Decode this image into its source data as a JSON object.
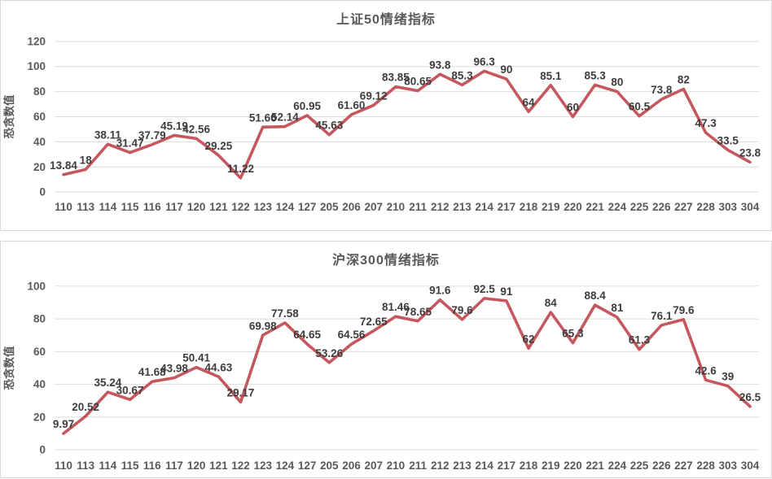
{
  "page": {
    "background_color": "#ffffff"
  },
  "chart_data": [
    {
      "type": "line",
      "title": "上证50情绪指标",
      "xlabel": "",
      "ylabel": "恐贪数值",
      "legend": "none",
      "grid": true,
      "ylim": [
        0,
        120
      ],
      "yticks": [
        0,
        20,
        40,
        60,
        80,
        100,
        120
      ],
      "categories": [
        "110",
        "113",
        "114",
        "115",
        "116",
        "117",
        "120",
        "121",
        "122",
        "123",
        "124",
        "127",
        "205",
        "206",
        "207",
        "210",
        "211",
        "212",
        "213",
        "214",
        "217",
        "218",
        "219",
        "220",
        "221",
        "224",
        "225",
        "226",
        "227",
        "228",
        "303",
        "304"
      ],
      "values": [
        13.84,
        18,
        38.11,
        31.47,
        37.79,
        45.19,
        42.56,
        29.25,
        11.22,
        51.66,
        52.14,
        60.95,
        45.63,
        61.6,
        69.12,
        83.85,
        80.65,
        93.8,
        85.3,
        96.3,
        90,
        64,
        85.1,
        60,
        85.3,
        80,
        60.5,
        73.8,
        82,
        47.3,
        33.5,
        23.8
      ],
      "point_labels": [
        "13.84",
        "18",
        "38.11",
        "31.47",
        "37.79",
        "45.19",
        "42.56",
        "29.25",
        "11.22",
        "51.66",
        "52.14",
        "60.95",
        "45.63",
        "61.60",
        "69.12",
        "83.85",
        "80.65",
        "93.8",
        "85.3",
        "96.3",
        "90",
        "64",
        "85.1",
        "60",
        "85.3",
        "80",
        "60.5",
        "73.8",
        "82",
        "47.3",
        "33.5",
        "23.8"
      ],
      "line_color": "#c4585e",
      "label_color": "#3d3d3d",
      "axis_text_color": "#595959",
      "grid_color": "#dcdcdc"
    },
    {
      "type": "line",
      "title": "沪深300情绪指标",
      "xlabel": "",
      "ylabel": "恐贪数值",
      "legend": "none",
      "grid": true,
      "ylim": [
        0,
        100
      ],
      "yticks": [
        0,
        20,
        40,
        60,
        80,
        100
      ],
      "categories": [
        "110",
        "113",
        "114",
        "115",
        "116",
        "117",
        "120",
        "121",
        "122",
        "123",
        "124",
        "127",
        "205",
        "206",
        "207",
        "210",
        "211",
        "212",
        "213",
        "214",
        "217",
        "218",
        "219",
        "220",
        "221",
        "224",
        "225",
        "226",
        "227",
        "228",
        "303",
        "304"
      ],
      "values": [
        9.97,
        20.52,
        35.24,
        30.67,
        41.68,
        43.98,
        50.41,
        44.63,
        29.17,
        69.98,
        77.58,
        64.65,
        53.26,
        64.56,
        72.65,
        81.46,
        78.65,
        91.6,
        79.6,
        92.5,
        91,
        62,
        84,
        65.3,
        88.4,
        81,
        61.3,
        76.1,
        79.6,
        42.6,
        39,
        26.5
      ],
      "point_labels": [
        "9.97",
        "20.52",
        "35.24",
        "30.67",
        "41.68",
        "43.98",
        "50.41",
        "44.63",
        "29.17",
        "69.98",
        "77.58",
        "64.65",
        "53.26",
        "64.56",
        "72.65",
        "81.46",
        "78.65",
        "91.6",
        "79.6",
        "92.5",
        "91",
        "62",
        "84",
        "65.3",
        "88.4",
        "81",
        "61.3",
        "76.1",
        "79.6",
        "42.6",
        "39",
        "26.5"
      ],
      "line_color": "#c4585e",
      "label_color": "#3d3d3d",
      "axis_text_color": "#595959",
      "grid_color": "#dcdcdc"
    }
  ]
}
